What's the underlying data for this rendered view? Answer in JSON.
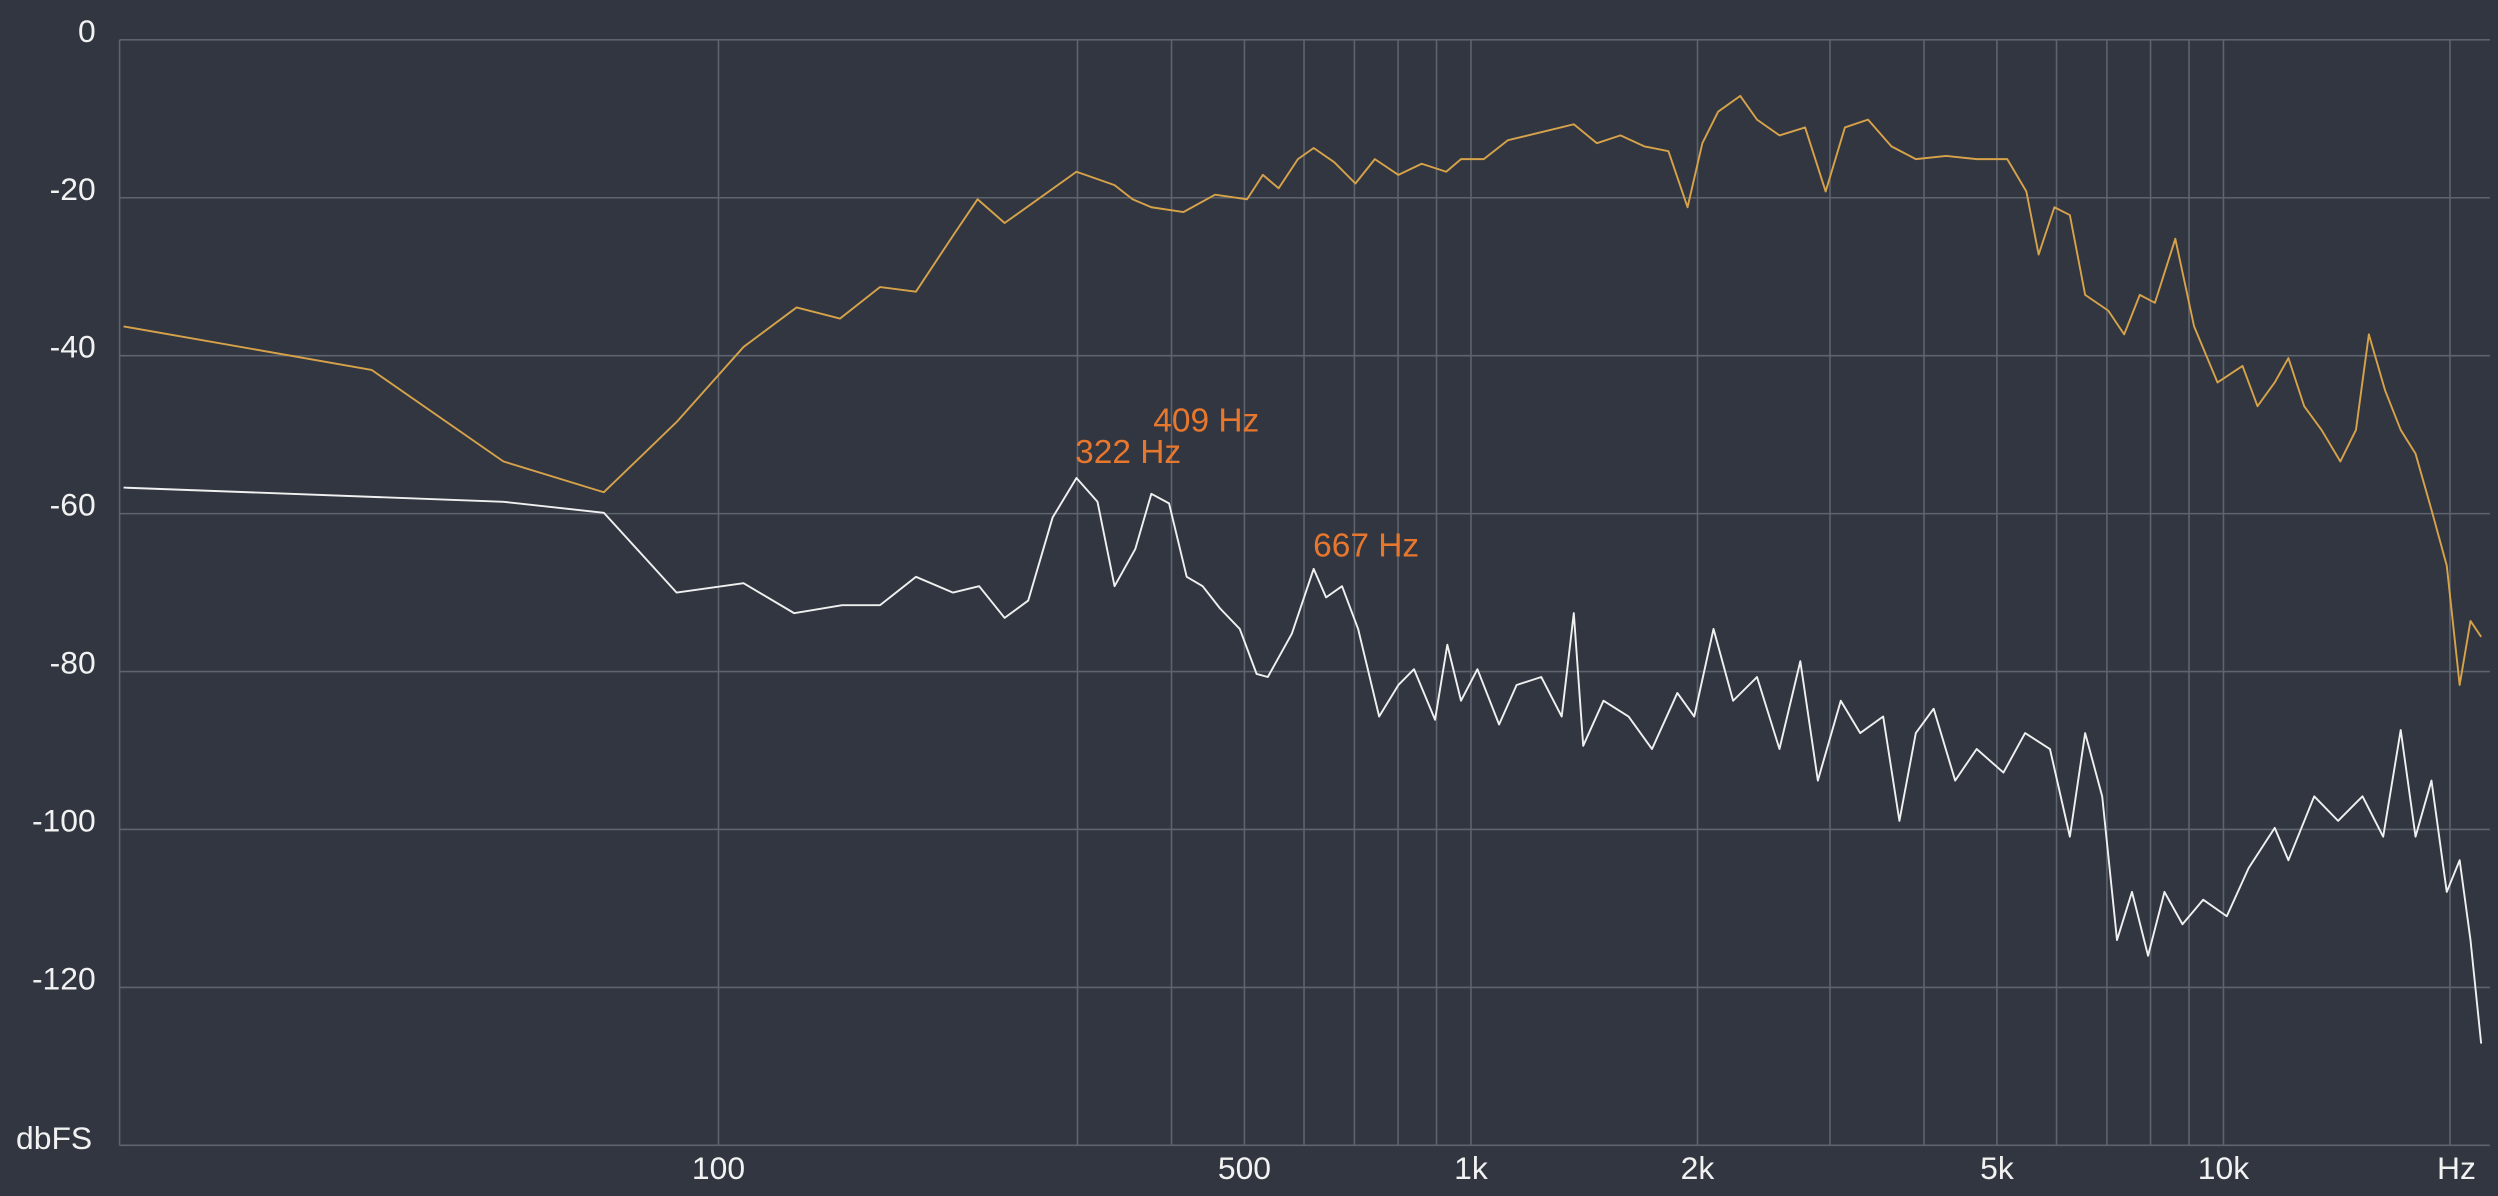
{
  "chart_data": {
    "type": "line",
    "x_log": true,
    "xlim": [
      16,
      22600
    ],
    "xticks": [
      {
        "value": 100,
        "label": "100"
      },
      {
        "value": 500,
        "label": "500"
      },
      {
        "value": 1000,
        "label": "1k"
      },
      {
        "value": 2000,
        "label": "2k"
      },
      {
        "value": 5000,
        "label": "5k"
      },
      {
        "value": 10000,
        "label": "10k"
      }
    ],
    "xminor": [
      300,
      400,
      600,
      700,
      800,
      900,
      3000,
      4000,
      6000,
      7000,
      8000,
      9000,
      20000
    ],
    "x_unit": "Hz",
    "ylim": [
      -140,
      0
    ],
    "yticks": [
      0,
      -20,
      -40,
      -60,
      -80,
      -100,
      -120
    ],
    "y_unit": "dbFS",
    "grid": true,
    "series": [
      {
        "color": "#d6a24a",
        "x": [
          16.2,
          34.6,
          51.8,
          70.4,
          88,
          108,
          127,
          145,
          164,
          183,
          205,
          221,
          240,
          299,
          336,
          355,
          376,
          415,
          457,
          504,
          529,
          555,
          589,
          618,
          658,
          702,
          745,
          801,
          860,
          927,
          970,
          1040,
          1120,
          1240,
          1370,
          1470,
          1580,
          1700,
          1830,
          1940,
          2030,
          2130,
          2280,
          2400,
          2570,
          2780,
          2960,
          3140,
          3370,
          3620,
          3900,
          4280,
          4700,
          5160,
          5470,
          5680,
          5960,
          6250,
          6550,
          7030,
          7380,
          7740,
          8110,
          8630,
          9140,
          9820,
          10600,
          11100,
          11700,
          12200,
          12800,
          13500,
          14300,
          15000,
          15600,
          16400,
          17200,
          18000,
          18900,
          19800,
          20600,
          21300,
          22000
        ],
        "values": [
          -36.3,
          -41.8,
          -53.4,
          -57.3,
          -48.4,
          -38.9,
          -33.9,
          -35.3,
          -31.3,
          -31.9,
          -24.8,
          -20.2,
          -23.2,
          -16.7,
          -18.4,
          -20.2,
          -21.2,
          -21.8,
          -19.6,
          -20.2,
          -17.1,
          -18.8,
          -15.1,
          -13.7,
          -15.5,
          -18.2,
          -15.1,
          -17.1,
          -15.7,
          -16.7,
          -15.1,
          -15.1,
          -12.7,
          -11.7,
          -10.7,
          -13.1,
          -12.1,
          -13.5,
          -14.1,
          -21.2,
          -13.1,
          -9.1,
          -7.1,
          -10.1,
          -12.1,
          -11.1,
          -19.2,
          -11.1,
          -10.1,
          -13.5,
          -15.1,
          -14.7,
          -15.1,
          -15.1,
          -19.2,
          -27.2,
          -21.2,
          -22.2,
          -32.3,
          -34.3,
          -37.3,
          -32.3,
          -33.3,
          -25.2,
          -36.3,
          -43.4,
          -41.3,
          -46.4,
          -43.4,
          -40.3,
          -46.4,
          -49.4,
          -53.4,
          -49.4,
          -37.3,
          -44.4,
          -49.4,
          -52.4,
          -59.5,
          -66.6,
          -81.7,
          -73.6,
          -75.6
        ]
      },
      {
        "color": "#f0f0f0",
        "x": [
          16.2,
          51.8,
          70.4,
          88,
          108,
          126,
          146,
          164,
          183,
          205,
          222,
          240,
          258,
          278,
          299,
          319,
          336,
          358,
          376,
          397,
          419,
          440,
          464,
          493,
          519,
          537,
          578,
          618,
          642,
          674,
          708,
          755,
          801,
          840,
          896,
          930,
          970,
          1020,
          1090,
          1150,
          1240,
          1320,
          1370,
          1410,
          1500,
          1620,
          1740,
          1880,
          1980,
          2100,
          2230,
          2400,
          2570,
          2740,
          2890,
          3100,
          3290,
          3530,
          3710,
          3900,
          4120,
          4400,
          4700,
          5100,
          5450,
          5880,
          6250,
          6550,
          6900,
          7220,
          7560,
          7940,
          8350,
          8820,
          9400,
          10100,
          10800,
          11700,
          12200,
          13200,
          14200,
          15300,
          16300,
          17200,
          18000,
          18900,
          19800,
          20600,
          21300,
          22000
        ],
        "values": [
          -56.7,
          -58.5,
          -59.9,
          -70.0,
          -68.8,
          -72.6,
          -71.6,
          -71.6,
          -68.0,
          -70.0,
          -69.2,
          -73.2,
          -71.0,
          -60.5,
          -55.5,
          -58.5,
          -69.2,
          -64.5,
          -57.5,
          -58.7,
          -68.0,
          -69.2,
          -72.0,
          -74.6,
          -80.3,
          -80.7,
          -75.2,
          -67.0,
          -70.6,
          -69.2,
          -74.6,
          -85.7,
          -81.7,
          -79.7,
          -86.1,
          -76.6,
          -83.7,
          -79.7,
          -86.7,
          -81.7,
          -80.7,
          -85.7,
          -72.6,
          -89.4,
          -83.7,
          -85.7,
          -89.8,
          -82.7,
          -85.7,
          -74.6,
          -83.7,
          -80.7,
          -89.8,
          -78.7,
          -93.8,
          -83.7,
          -87.8,
          -85.7,
          -98.9,
          -87.8,
          -84.7,
          -93.8,
          -89.8,
          -92.8,
          -87.8,
          -89.8,
          -100.9,
          -87.8,
          -95.8,
          -114.0,
          -107.9,
          -116.0,
          -107.9,
          -112.0,
          -108.9,
          -111.0,
          -104.9,
          -99.8,
          -103.9,
          -95.8,
          -98.9,
          -95.8,
          -100.9,
          -87.4,
          -100.9,
          -93.8,
          -107.9,
          -103.9,
          -114.0,
          -127.1
        ]
      }
    ],
    "annotations": [
      {
        "text": "322 Hz",
        "x": 322,
        "y": -52.5,
        "color": "#e8772e"
      },
      {
        "text": "409 Hz",
        "x": 409,
        "y": -48.5,
        "color": "#e8772e"
      },
      {
        "text": "667 Hz",
        "x": 667,
        "y": -64.3,
        "color": "#e8772e"
      }
    ]
  }
}
